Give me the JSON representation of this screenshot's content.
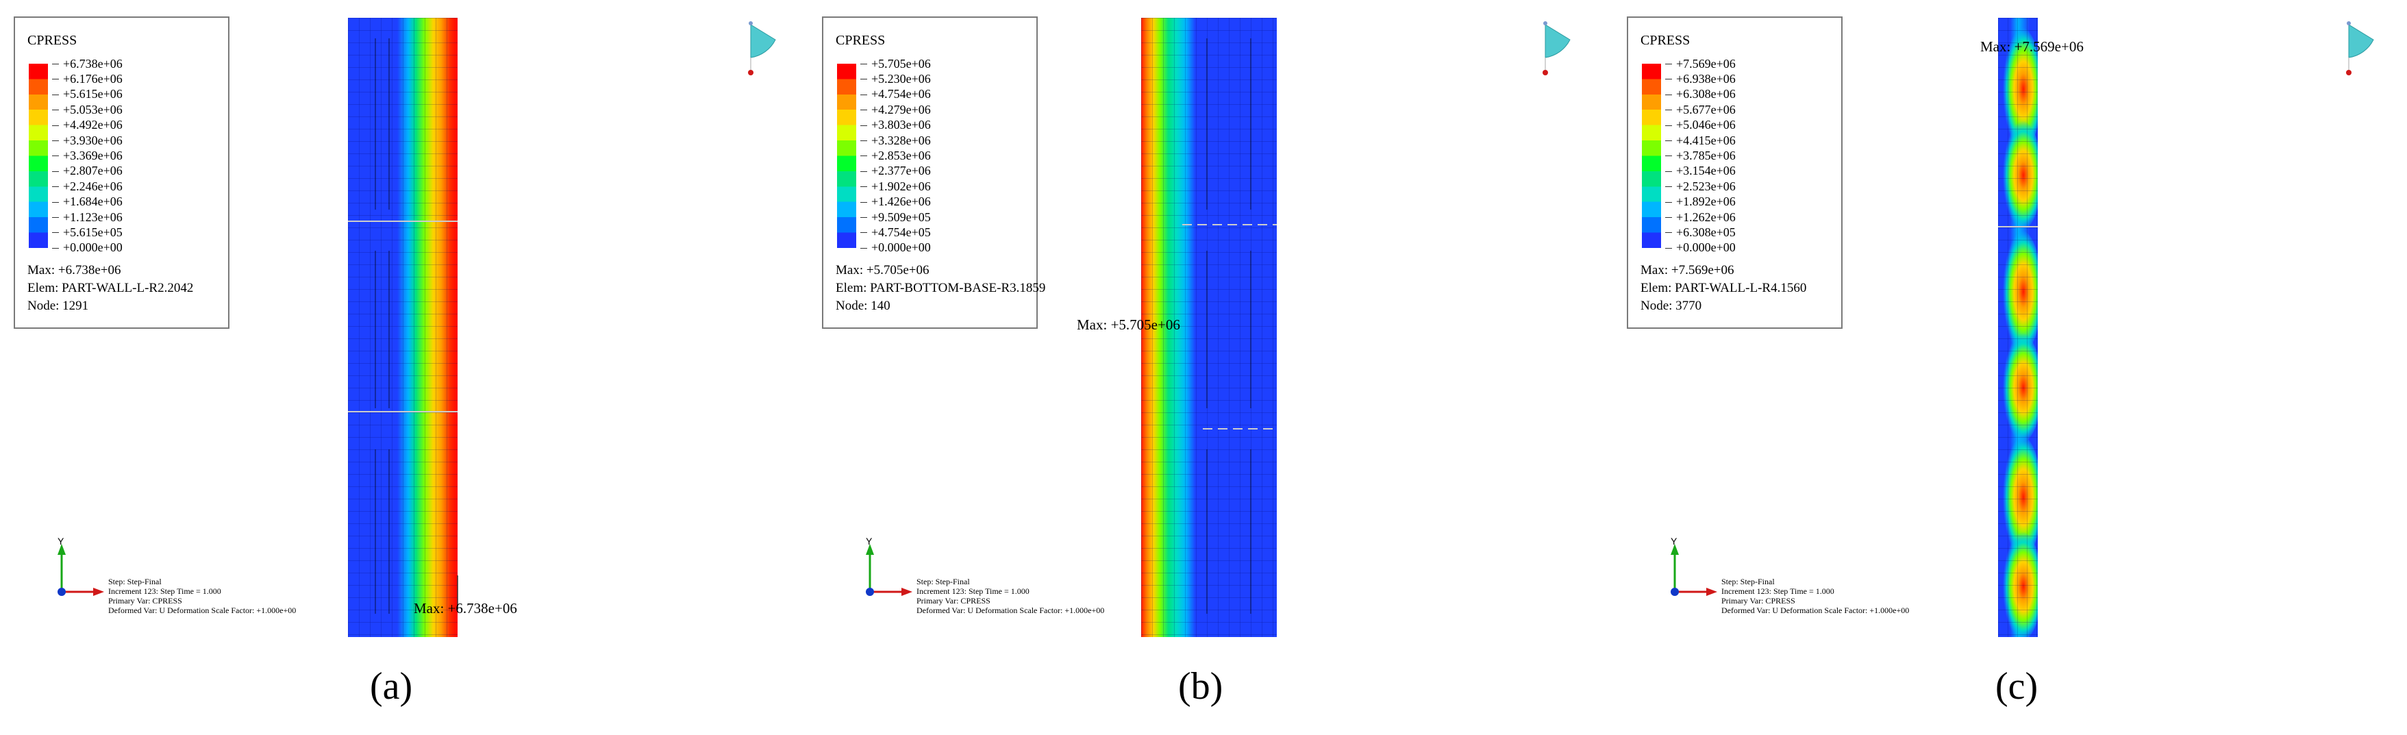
{
  "panels": [
    {
      "caption": "(a)",
      "legend": {
        "title": "CPRESS",
        "values": [
          "+6.738e+06",
          "+6.176e+06",
          "+5.615e+06",
          "+5.053e+06",
          "+4.492e+06",
          "+3.930e+06",
          "+3.369e+06",
          "+2.807e+06",
          "+2.246e+06",
          "+1.684e+06",
          "+1.123e+06",
          "+5.615e+05",
          "+0.000e+00"
        ],
        "max": "Max: +6.738e+06",
        "elem": "Elem: PART-WALL-L-R2.2042",
        "node": "Node: 1291"
      },
      "max_marker": "Max: +6.738e+06",
      "step_lines": [
        "Step: Step-Final",
        "Increment    123: Step Time =    1.000",
        "Primary Var: CPRESS",
        "Deformed Var: U   Deformation Scale Factor: +1.000e+00"
      ]
    },
    {
      "caption": "(b)",
      "legend": {
        "title": "CPRESS",
        "values": [
          "+5.705e+06",
          "+5.230e+06",
          "+4.754e+06",
          "+4.279e+06",
          "+3.803e+06",
          "+3.328e+06",
          "+2.853e+06",
          "+2.377e+06",
          "+1.902e+06",
          "+1.426e+06",
          "+9.509e+05",
          "+4.754e+05",
          "+0.000e+00"
        ],
        "max": "Max: +5.705e+06",
        "elem": "Elem: PART-BOTTOM-BASE-R3.1859",
        "node": "Node: 140"
      },
      "max_marker": "Max: +5.705e+06",
      "step_lines": [
        "Step: Step-Final",
        "Increment    123: Step Time =    1.000",
        "Primary Var: CPRESS",
        "Deformed Var: U   Deformation Scale Factor: +1.000e+00"
      ]
    },
    {
      "caption": "(c)",
      "legend": {
        "title": "CPRESS",
        "values": [
          "+7.569e+06",
          "+6.938e+06",
          "+6.308e+06",
          "+5.677e+06",
          "+5.046e+06",
          "+4.415e+06",
          "+3.785e+06",
          "+3.154e+06",
          "+2.523e+06",
          "+1.892e+06",
          "+1.262e+06",
          "+6.308e+05",
          "+0.000e+00"
        ],
        "max": "Max: +7.569e+06",
        "elem": "Elem: PART-WALL-L-R4.1560",
        "node": "Node: 3770"
      },
      "max_marker": "Max: +7.569e+06",
      "step_lines": [
        "Step: Step-Final",
        "Increment    123: Step Time =    1.000",
        "Primary Var: CPRESS",
        "Deformed Var: U   Deformation Scale Factor: +1.000e+00"
      ]
    }
  ],
  "colors": {
    "scale": [
      "#ff0000",
      "#ff5a00",
      "#ff9e00",
      "#ffd200",
      "#d7ff00",
      "#7cff00",
      "#00ff2a",
      "#00e27e",
      "#00ddc3",
      "#00b6ff",
      "#0072ff",
      "#1e32ff",
      "#0000e6"
    ]
  },
  "triad_label": "Y",
  "icons": [
    "axis-triad-icon",
    "view-orientation-icon"
  ]
}
